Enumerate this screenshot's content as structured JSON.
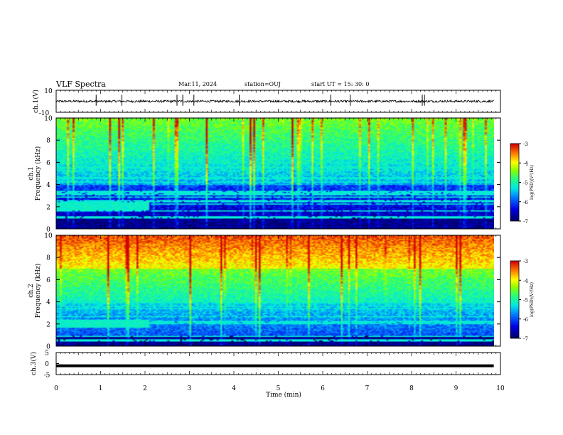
{
  "header": {
    "title": "VLF Spectra",
    "date": "Mar.11, 2024",
    "station": "station=OUJ",
    "start": "start  UT =   15: 30: 0"
  },
  "chart_data": [
    {
      "type": "line",
      "name_label": "ch.1(V)",
      "ylabel": "ch.1(V)",
      "ylim": [
        -10,
        10
      ],
      "yticks": [
        "10",
        "-10"
      ],
      "xlim": [
        0,
        10
      ],
      "baseline": 0,
      "noise_amplitude": 1,
      "spike_times_min": [
        0.9,
        1.48,
        2.72,
        2.85,
        3.1,
        4.12,
        6.18,
        6.62,
        8.24,
        8.29
      ]
    },
    {
      "type": "heatmap",
      "ylabel": "Frequency (kHz)",
      "channel_label": "ch.1",
      "ylim": [
        0,
        10
      ],
      "yticks": [
        "0",
        "2",
        "4",
        "6",
        "8",
        "10"
      ],
      "xlim": [
        0,
        9.85
      ],
      "colorbar": {
        "label": "log(PSD)(V²/Hz)",
        "range": [
          -7,
          -3
        ],
        "ticks": [
          "-3",
          "-4",
          "-5",
          "-6",
          "-7"
        ]
      },
      "features": {
        "band_kHz": [
          1.6,
          2.4
        ],
        "band_end_min": 2.08,
        "intensity": "moderate"
      }
    },
    {
      "type": "heatmap",
      "ylabel": "Frequency (kHz)",
      "channel_label": "ch.2",
      "ylim": [
        0,
        10
      ],
      "yticks": [
        "0",
        "2",
        "4",
        "6",
        "8",
        "10"
      ],
      "xlim": [
        0,
        9.85
      ],
      "colorbar": {
        "label": "log(PSD)(V²/Hz)",
        "range": [
          -7,
          -3
        ],
        "ticks": [
          "-3",
          "-4",
          "-5",
          "-6",
          "-7"
        ]
      },
      "features": {
        "band_kHz": [
          1.6,
          2.4
        ],
        "band_end_min": 2.08,
        "intensity": "high"
      }
    },
    {
      "type": "line",
      "ylabel": "ch.3(V)",
      "ylim": [
        -5,
        5
      ],
      "yticks": [
        "5",
        "0",
        "-5"
      ],
      "xlim": [
        0,
        9.85
      ],
      "values_constant": -1
    }
  ],
  "xaxis": {
    "label": "Time (min)",
    "range": [
      0,
      10
    ],
    "ticks": [
      "0",
      "1",
      "2",
      "3",
      "4",
      "5",
      "6",
      "7",
      "8",
      "9",
      "10"
    ]
  },
  "colors": {
    "signal": "#000000",
    "background": "#ffffff",
    "colormap": [
      "#000080",
      "#0000ff",
      "#00b0ff",
      "#00ff80",
      "#80ff00",
      "#ffff00",
      "#ff8000",
      "#d00000"
    ]
  }
}
